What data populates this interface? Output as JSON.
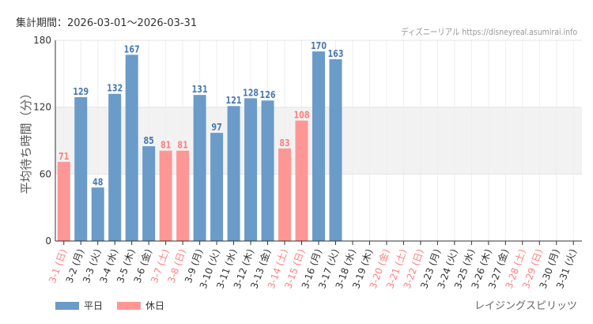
{
  "header": {
    "period": "集計期間：2026-03-01～2026-03-31",
    "credit": "ディズニーリアル https://disneyreal.asumirai.info"
  },
  "attraction": "レイジングスピリッツ",
  "colors": {
    "weekday": "#6a9bc9",
    "holiday": "#ff9696",
    "holiday_label": "#ff8080"
  },
  "chart_data": {
    "type": "bar",
    "ylabel": "平均待ち時間（分）",
    "ylim": [
      0,
      180
    ],
    "yticks": [
      0,
      60,
      120,
      180
    ],
    "grid": true,
    "legend_position": "bottom-left",
    "series": [
      {
        "name": "平日"
      },
      {
        "name": "休日"
      }
    ],
    "categories": [
      "3-1 (日)",
      "3-2 (月)",
      "3-3 (火)",
      "3-4 (水)",
      "3-5 (木)",
      "3-6 (金)",
      "3-7 (土)",
      "3-8 (日)",
      "3-9 (月)",
      "3-10 (火)",
      "3-11 (水)",
      "3-12 (木)",
      "3-13 (金)",
      "3-14 (土)",
      "3-15 (日)",
      "3-16 (月)",
      "3-17 (火)",
      "3-18 (水)",
      "3-19 (木)",
      "3-20 (金)",
      "3-21 (土)",
      "3-22 (日)",
      "3-23 (月)",
      "3-24 (火)",
      "3-25 (水)",
      "3-26 (木)",
      "3-27 (金)",
      "3-28 (土)",
      "3-29 (日)",
      "3-30 (月)",
      "3-31 (火)"
    ],
    "values": [
      71,
      129,
      48,
      132,
      167,
      85,
      81,
      81,
      131,
      97,
      121,
      128,
      126,
      83,
      108,
      170,
      163,
      null,
      null,
      null,
      null,
      null,
      null,
      null,
      null,
      null,
      null,
      null,
      null,
      null,
      null
    ],
    "holiday": [
      true,
      false,
      false,
      false,
      false,
      false,
      true,
      true,
      false,
      false,
      false,
      false,
      false,
      true,
      true,
      false,
      false,
      false,
      false,
      true,
      true,
      true,
      false,
      false,
      false,
      false,
      false,
      true,
      true,
      false,
      false
    ]
  }
}
